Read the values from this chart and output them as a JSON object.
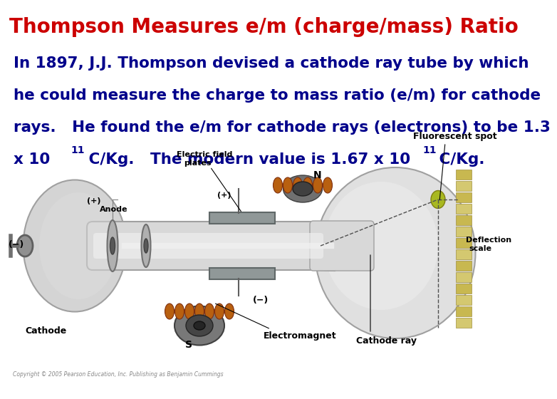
{
  "title": "Thompson Measures e/m (charge/mass) Ratio",
  "title_color": "#cc0000",
  "title_fontsize": 20,
  "body_color": "#00008B",
  "body_fontsize": 15.5,
  "background_color": "#ffffff",
  "line1": "In 1897, J.J. Thompson devised a cathode ray tube by which",
  "line2": "he could measure the charge to mass ratio (e/m) for cathode",
  "line3": "rays.   He found the e/m for cathode rays (electrons) to be 1.3",
  "line4_a": "x 10 ",
  "line4_sup": "11",
  "line4_b": " C/Kg.   The modern value is 1.67 x 10",
  "line4_sup2": "11",
  "line4_c": " C/Kg.",
  "copyright": "Copyright © 2005 Pearson Education, Inc. Publishing as Benjamin Cummings",
  "tube_color": "#d8d8d8",
  "coil_color": "#b86010",
  "plate_color": "#909898",
  "label_fs": 8
}
